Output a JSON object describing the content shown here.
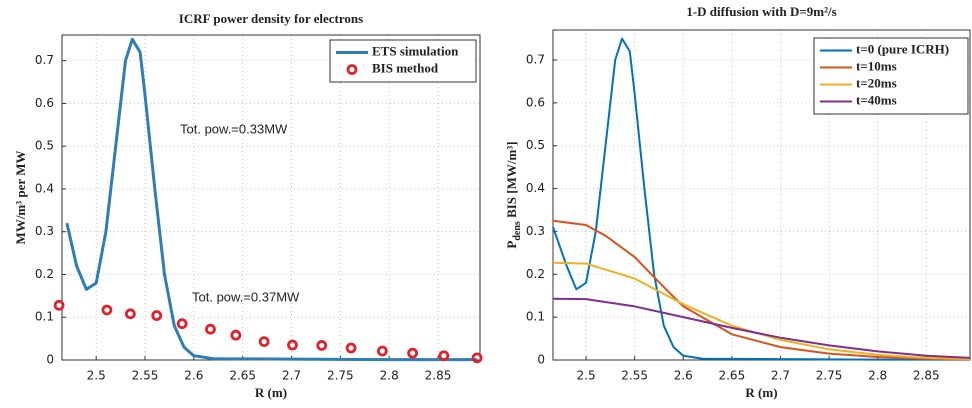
{
  "chart_data": [
    {
      "type": "line",
      "title": "ICRF power density for electrons",
      "xlabel": "R (m)",
      "ylabel": "MW/m³ per MW",
      "xlim": [
        2.465,
        2.893
      ],
      "ylim": [
        0,
        0.76
      ],
      "xticks": [
        2.5,
        2.55,
        2.6,
        2.65,
        2.7,
        2.75,
        2.8,
        2.85
      ],
      "yticks": [
        0,
        0.1,
        0.2,
        0.3,
        0.4,
        0.5,
        0.6,
        0.7
      ],
      "grid": true,
      "legend": "upper right",
      "series": [
        {
          "name": "ETS simulation",
          "color": "#2f7db5",
          "marker": false,
          "x": [
            2.47,
            2.48,
            2.49,
            2.5,
            2.51,
            2.52,
            2.53,
            2.537,
            2.545,
            2.55,
            2.56,
            2.57,
            2.58,
            2.59,
            2.6,
            2.62,
            2.7,
            2.8,
            2.89
          ],
          "values": [
            0.32,
            0.22,
            0.165,
            0.18,
            0.3,
            0.5,
            0.7,
            0.75,
            0.72,
            0.62,
            0.4,
            0.2,
            0.08,
            0.03,
            0.01,
            0.003,
            0.002,
            0.001,
            0.001
          ]
        },
        {
          "name": "BIS method",
          "color": "#e0202a",
          "marker": true,
          "x": [
            2.462,
            2.511,
            2.535,
            2.562,
            2.588,
            2.617,
            2.643,
            2.672,
            2.701,
            2.731,
            2.761,
            2.793,
            2.824,
            2.856,
            2.89
          ],
          "values": [
            0.128,
            0.117,
            0.108,
            0.104,
            0.085,
            0.072,
            0.058,
            0.043,
            0.035,
            0.034,
            0.028,
            0.021,
            0.016,
            0.01,
            0.005
          ]
        }
      ],
      "annotations": [
        {
          "text": "Tot. pow.=0.33MW",
          "color": "#1f7fc4"
        },
        {
          "text": "Tot. pow.=0.37MW",
          "color": "#d01c1c"
        }
      ]
    },
    {
      "type": "line",
      "title": "1-D diffusion with D=9m²/s",
      "xlabel": "R (m)",
      "ylabel": [
        "P",
        "dens",
        " BIS [MW/m³]"
      ],
      "xlim": [
        2.466,
        2.895
      ],
      "ylim": [
        0,
        0.77
      ],
      "xticks": [
        2.5,
        2.55,
        2.6,
        2.65,
        2.7,
        2.75,
        2.8,
        2.85
      ],
      "yticks": [
        0,
        0.1,
        0.2,
        0.3,
        0.4,
        0.5,
        0.6,
        0.7
      ],
      "grid": true,
      "legend": "upper right",
      "series": [
        {
          "name": "t=0 (pure ICRH)",
          "color": "#0072bd",
          "x": [
            2.466,
            2.48,
            2.49,
            2.5,
            2.51,
            2.52,
            2.53,
            2.537,
            2.545,
            2.55,
            2.56,
            2.57,
            2.58,
            2.59,
            2.6,
            2.62,
            2.7,
            2.8,
            2.895
          ],
          "values": [
            0.31,
            0.22,
            0.165,
            0.18,
            0.3,
            0.5,
            0.7,
            0.75,
            0.72,
            0.62,
            0.4,
            0.2,
            0.08,
            0.03,
            0.01,
            0.003,
            0.002,
            0.001,
            0.001
          ]
        },
        {
          "name": "t=10ms",
          "color": "#d95319",
          "x": [
            2.466,
            2.5,
            2.52,
            2.55,
            2.58,
            2.6,
            2.65,
            2.7,
            2.75,
            2.8,
            2.85,
            2.895
          ],
          "values": [
            0.325,
            0.315,
            0.29,
            0.24,
            0.17,
            0.125,
            0.06,
            0.03,
            0.015,
            0.007,
            0.003,
            0.001
          ]
        },
        {
          "name": "t=20ms",
          "color": "#edb120",
          "x": [
            2.466,
            2.5,
            2.55,
            2.6,
            2.65,
            2.7,
            2.75,
            2.8,
            2.85,
            2.895
          ],
          "values": [
            0.227,
            0.225,
            0.19,
            0.13,
            0.08,
            0.047,
            0.025,
            0.012,
            0.005,
            0.002
          ]
        },
        {
          "name": "t=40ms",
          "color": "#7e2f8e",
          "x": [
            2.466,
            2.5,
            2.55,
            2.6,
            2.65,
            2.7,
            2.75,
            2.8,
            2.85,
            2.895
          ],
          "values": [
            0.143,
            0.142,
            0.125,
            0.1,
            0.075,
            0.052,
            0.034,
            0.02,
            0.01,
            0.005
          ]
        }
      ]
    }
  ]
}
